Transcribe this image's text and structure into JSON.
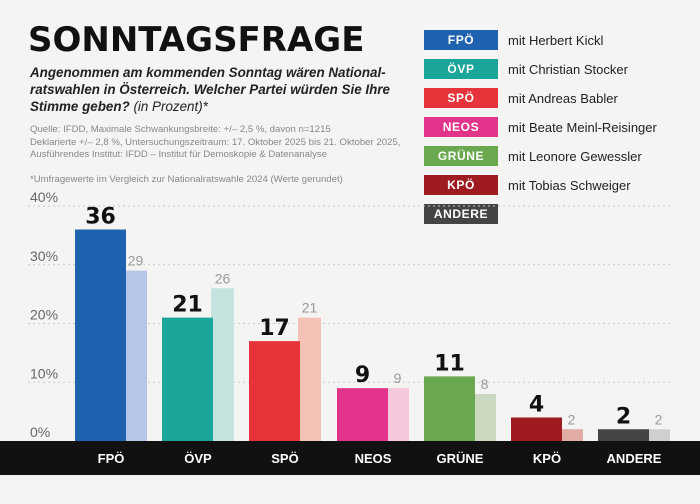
{
  "header": {
    "title": "SONNTAGSFRAGE",
    "subtitle": "Angenommen am kommenden Sonntag wären National-ratswahlen in Österreich. Welcher  Partei würden Sie Ihre Stimme geben?",
    "subtitle_unit": "(in Prozent)*",
    "source_lines": [
      "Quelle: IFDD, Maximale Schwankungsbreite: +/– 2,5 %, davon n=1215",
      "Deklarierte +/– 2,8 %,  Untersuchungszeitraum: 17. Oktober 2025 bis 21. Oktober 2025,",
      "Ausführendes Institut: IFDD – Institut für Demoskopie & Datenanalyse"
    ],
    "note": "*Umfragewerte im Vergleich zur Nationalratswahle 2024 (Werte gerundet)"
  },
  "legend": [
    {
      "party": "FPÖ",
      "label": "mit Herbert Kickl",
      "color": "#1f63b0"
    },
    {
      "party": "ÖVP",
      "label": "mit Christian Stocker",
      "color": "#1aa69a"
    },
    {
      "party": "SPÖ",
      "label": "mit Andreas Babler",
      "color": "#e8333a"
    },
    {
      "party": "NEOS",
      "label": "mit Beate Meinl-Reisinger",
      "color": "#e3348c"
    },
    {
      "party": "GRÜNE",
      "label": "mit Leonore Gewessler",
      "color": "#6aa84f"
    },
    {
      "party": "KPÖ",
      "label": "mit Tobias Schweiger",
      "color": "#9e1b20"
    },
    {
      "party": "ANDERE",
      "label": "",
      "color": "#444444"
    }
  ],
  "chart_data": {
    "type": "bar",
    "categories": [
      "FPÖ",
      "ÖVP",
      "SPÖ",
      "NEOS",
      "GRÜNE",
      "KPÖ",
      "ANDERE"
    ],
    "series": [
      {
        "values": [
          36,
          21,
          17,
          9,
          11,
          4,
          2
        ],
        "colors": [
          "#1f63b0",
          "#1aa69a",
          "#e8333a",
          "#e3348c",
          "#6aa84f",
          "#9e1b20",
          "#444444"
        ]
      },
      {
        "values": [
          29,
          26,
          21,
          9,
          8,
          2,
          2
        ],
        "colors": [
          "#b7c6e6",
          "#c5e3df",
          "#f4c3b5",
          "#f6c8dc",
          "#c9d8bf",
          "#e1aca4",
          "#cfcfcf"
        ]
      }
    ],
    "y_ticks": [
      "0%",
      "10%",
      "20%",
      "30%",
      "40%"
    ],
    "ylim": [
      0,
      40
    ],
    "grid": true
  }
}
